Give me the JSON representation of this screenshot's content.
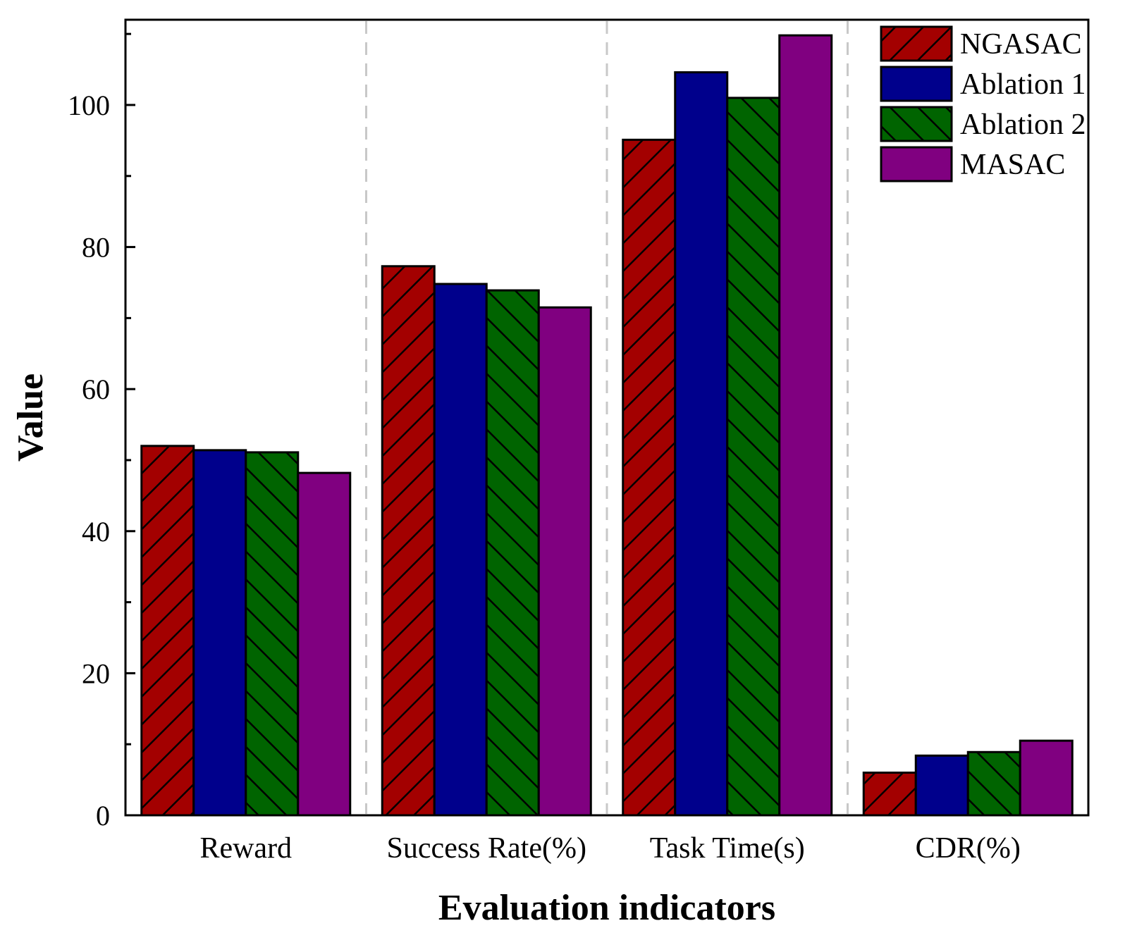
{
  "chart_data": {
    "type": "bar",
    "title": "",
    "xlabel": "Evaluation indicators",
    "ylabel": "Value",
    "ylim": [
      0,
      112
    ],
    "yticks": [
      0,
      20,
      40,
      60,
      80,
      100
    ],
    "yminor_step": 10,
    "grid": false,
    "legend_position": "top-right",
    "categories": [
      "Reward",
      "Success Rate(%)",
      "Task Time(s)",
      "CDR(%)"
    ],
    "series": [
      {
        "name": "NGASAC",
        "values": [
          52.0,
          77.3,
          95.1,
          6.0
        ],
        "color": "#a30000",
        "pattern": "forward-hatch"
      },
      {
        "name": "Ablation 1",
        "values": [
          51.4,
          74.8,
          104.6,
          8.4
        ],
        "color": "#00008c",
        "pattern": "solid"
      },
      {
        "name": "Ablation 2",
        "values": [
          51.1,
          73.9,
          101.0,
          8.9
        ],
        "color": "#006400",
        "pattern": "back-hatch"
      },
      {
        "name": "MASAC",
        "values": [
          48.2,
          71.5,
          109.8,
          10.5
        ],
        "color": "#800080",
        "pattern": "solid"
      }
    ]
  }
}
